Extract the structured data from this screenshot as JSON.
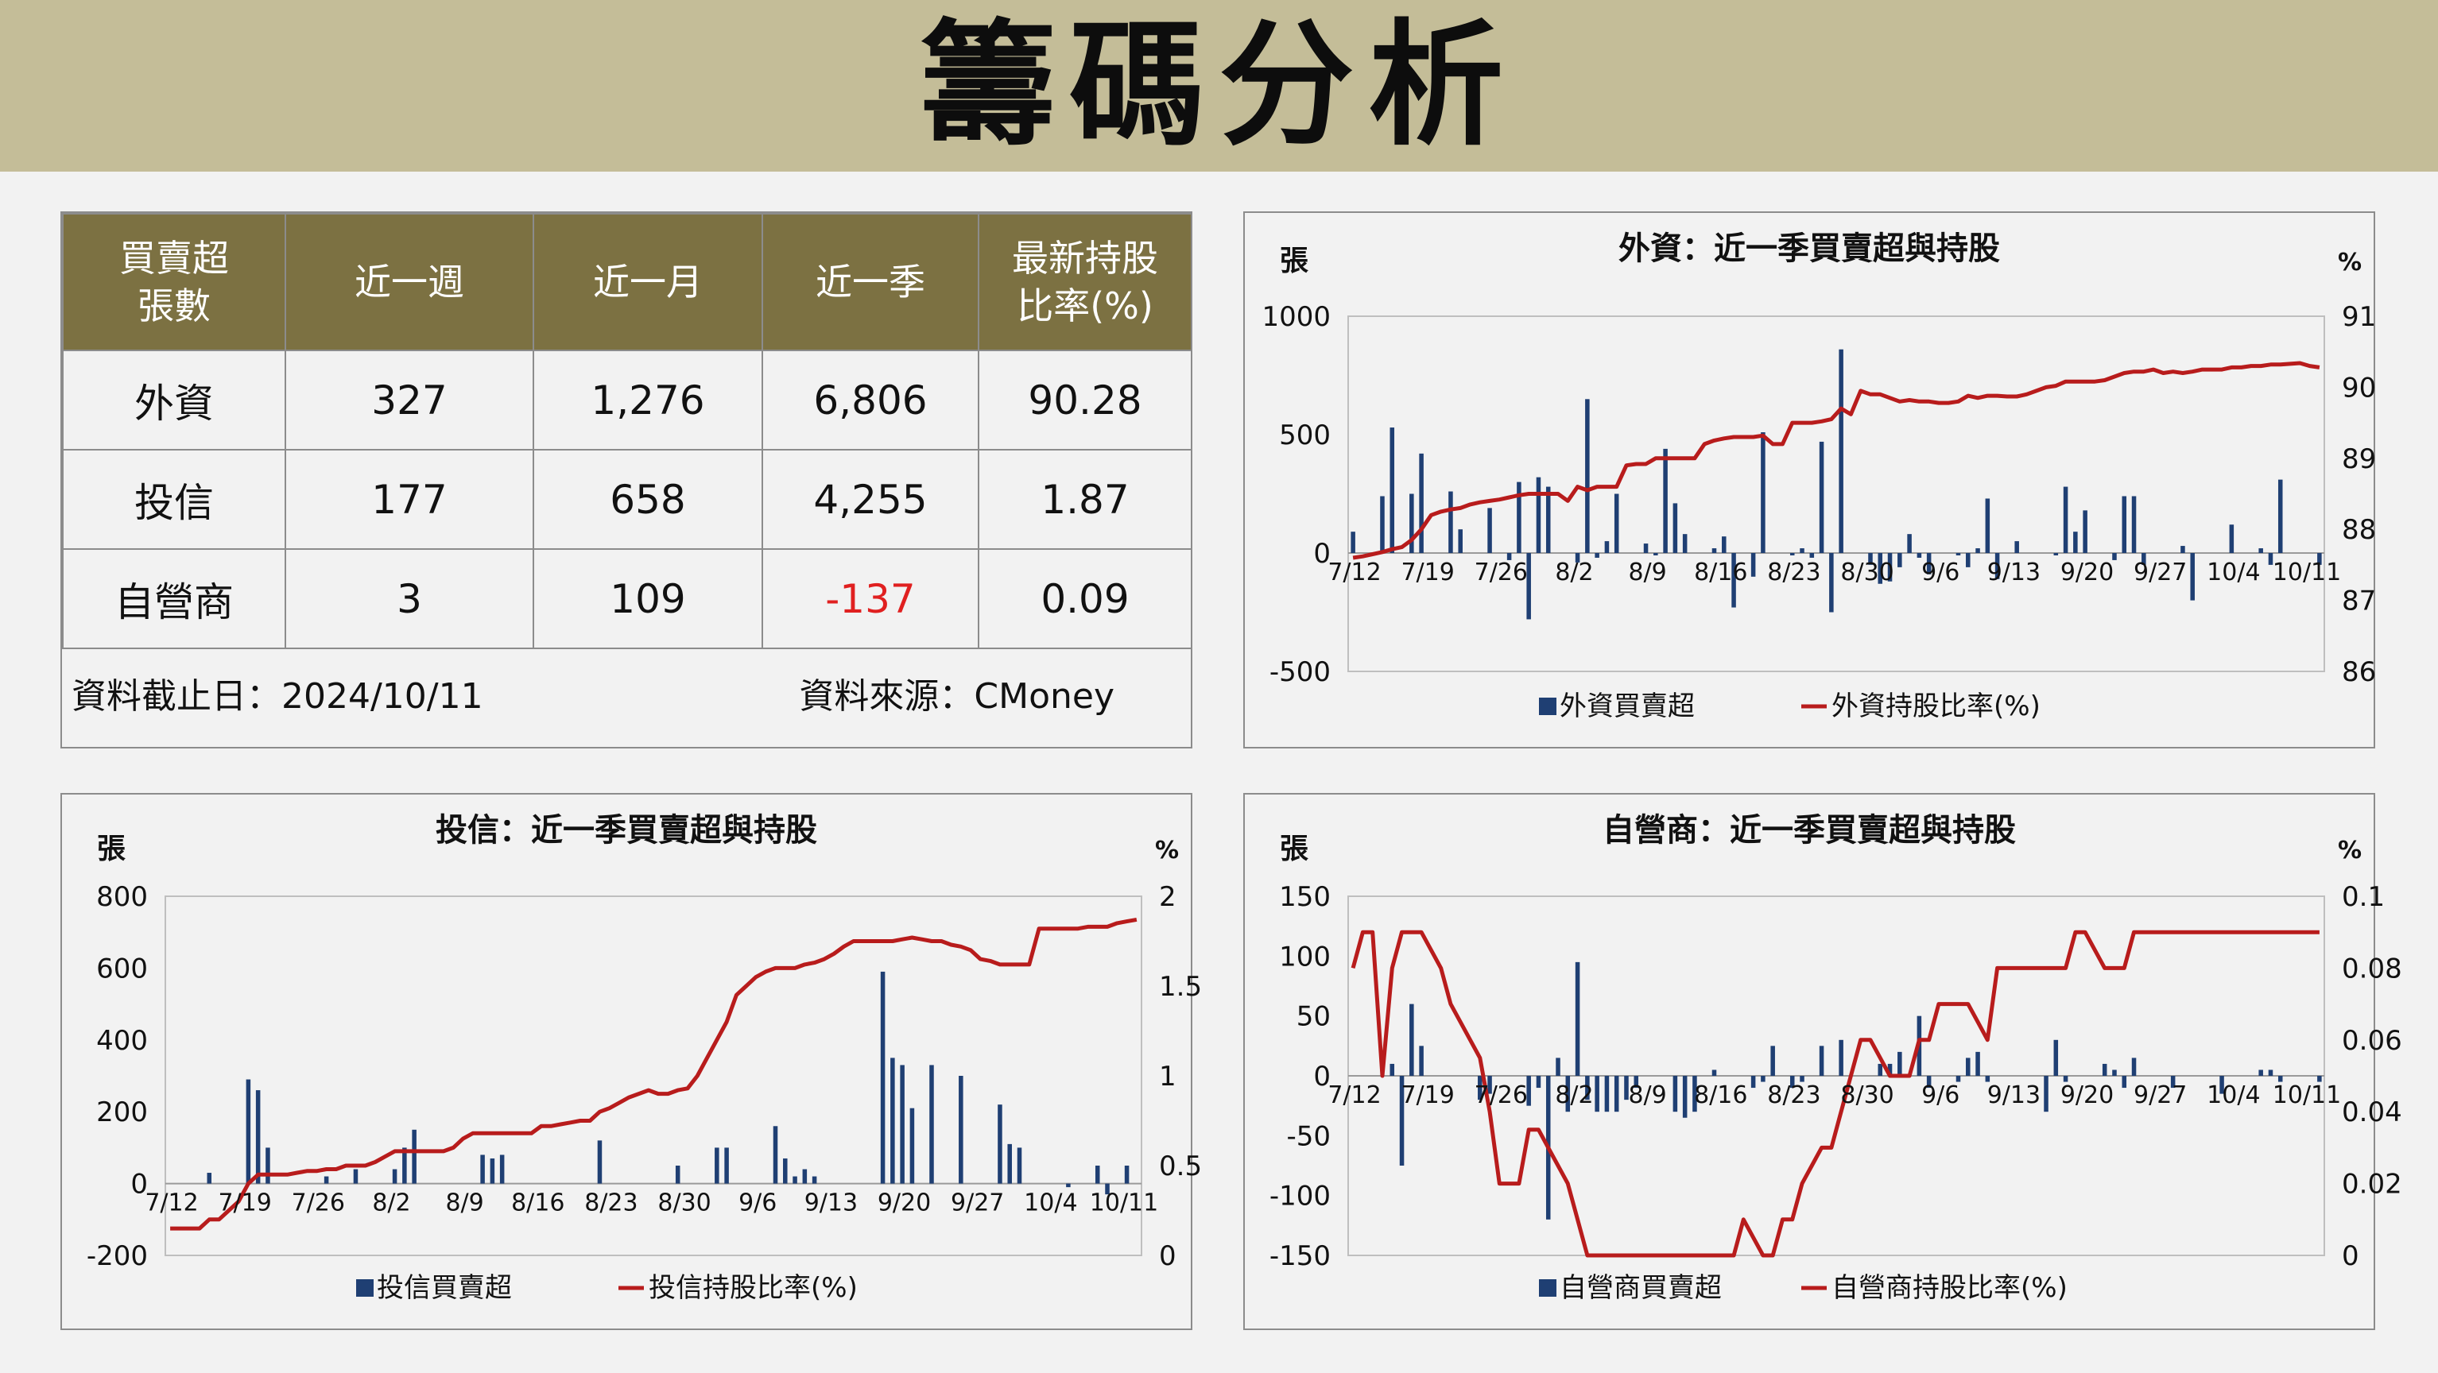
{
  "page": {
    "title": "籌碼分析"
  },
  "summary_table": {
    "headers": [
      "買賣超\n張數",
      "近一週",
      "近一月",
      "近一季",
      "最新持股\n比率(%)"
    ],
    "rows": [
      {
        "cells": [
          "外資",
          "327",
          "1,276",
          "6,806",
          "90.28"
        ]
      },
      {
        "cells": [
          "投信",
          "177",
          "658",
          "4,255",
          "1.87"
        ]
      },
      {
        "cells": [
          "自營商",
          "3",
          "109",
          "-137",
          "0.09"
        ]
      }
    ],
    "footer": {
      "date": "資料截止日：2024/10/11",
      "source": "資料來源：CMoney"
    },
    "negative_color": "#e02020"
  },
  "colors": {
    "banner": "#c4bd98",
    "header": "#7c7142",
    "bar": "#1f3f73",
    "line": "#b81c1c"
  },
  "chart_data": [
    {
      "id": "foreign",
      "type": "bar+line",
      "title": "外資：近一季買賣超與持股",
      "ylabel_left": "張",
      "ylabel_right": "%",
      "ylim_left": [
        -500,
        1000
      ],
      "yticks_left": [
        "-500",
        "0",
        "500",
        "1000"
      ],
      "ylim_right": [
        86,
        91
      ],
      "yticks_right": [
        "86",
        "87",
        "88",
        "89",
        "90",
        "91"
      ],
      "tick_labels": [
        "7/12",
        "7/19",
        "7/26",
        "8/2",
        "8/9",
        "8/16",
        "8/23",
        "8/30",
        "9/6",
        "9/13",
        "9/20",
        "9/27",
        "10/4",
        "10/11"
      ],
      "series": [
        {
          "name": "外資買賣超",
          "kind": "bar",
          "color": "#1f3f73",
          "values": [
            90,
            0,
            0,
            240,
            530,
            0,
            250,
            420,
            0,
            0,
            260,
            100,
            0,
            0,
            190,
            0,
            -30,
            300,
            -280,
            320,
            280,
            0,
            0,
            -40,
            650,
            -20,
            50,
            250,
            0,
            0,
            40,
            -10,
            440,
            210,
            80,
            0,
            0,
            20,
            70,
            -230,
            0,
            -100,
            510,
            0,
            0,
            -10,
            20,
            -20,
            470,
            -250,
            860,
            0,
            0,
            -50,
            -130,
            -120,
            -60,
            80,
            -20,
            -90,
            0,
            0,
            -10,
            -60,
            20,
            230,
            -110,
            0,
            50,
            0,
            0,
            0,
            -10,
            280,
            90,
            180,
            0,
            0,
            -30,
            240,
            240,
            -50,
            0,
            0,
            0,
            30,
            -200,
            0,
            0,
            0,
            120,
            0,
            0,
            20,
            -50,
            310,
            0,
            0,
            0,
            -50
          ]
        },
        {
          "name": "外資持股比率(%)",
          "kind": "line",
          "color": "#b81c1c",
          "values": [
            87.6,
            87.62,
            87.65,
            87.68,
            87.72,
            87.75,
            87.85,
            88.0,
            88.2,
            88.25,
            88.28,
            88.3,
            88.35,
            88.38,
            88.4,
            88.42,
            88.45,
            88.48,
            88.5,
            88.5,
            88.5,
            88.5,
            88.4,
            88.6,
            88.55,
            88.6,
            88.6,
            88.6,
            88.9,
            88.92,
            88.92,
            89.0,
            89.0,
            89.0,
            89.0,
            89.0,
            89.2,
            89.25,
            89.28,
            89.3,
            89.3,
            89.3,
            89.32,
            89.2,
            89.2,
            89.5,
            89.5,
            89.5,
            89.52,
            89.55,
            89.7,
            89.62,
            89.95,
            89.9,
            89.9,
            89.85,
            89.8,
            89.82,
            89.8,
            89.8,
            89.78,
            89.78,
            89.8,
            89.88,
            89.85,
            89.88,
            89.88,
            89.87,
            89.87,
            89.9,
            89.95,
            90.0,
            90.02,
            90.08,
            90.08,
            90.08,
            90.08,
            90.1,
            90.15,
            90.2,
            90.22,
            90.22,
            90.25,
            90.2,
            90.22,
            90.2,
            90.22,
            90.25,
            90.25,
            90.25,
            90.28,
            90.28,
            90.3,
            90.3,
            90.32,
            90.32,
            90.33,
            90.34,
            90.3,
            90.28
          ]
        }
      ]
    },
    {
      "id": "trust",
      "type": "bar+line",
      "title": "投信：近一季買賣超與持股",
      "ylabel_left": "張",
      "ylabel_right": "%",
      "ylim_left": [
        -200,
        800
      ],
      "yticks_left": [
        "-200",
        "0",
        "200",
        "400",
        "600",
        "800"
      ],
      "ylim_right": [
        0,
        2
      ],
      "yticks_right": [
        "0",
        "0.5",
        "1",
        "1.5",
        "2"
      ],
      "tick_labels": [
        "7/12",
        "7/19",
        "7/26",
        "8/2",
        "8/9",
        "8/16",
        "8/23",
        "8/30",
        "9/6",
        "9/13",
        "9/20",
        "9/27",
        "10/4",
        "10/11"
      ],
      "series": [
        {
          "name": "投信買賣超",
          "kind": "bar",
          "color": "#1f3f73",
          "values": [
            0,
            0,
            0,
            0,
            30,
            0,
            0,
            0,
            290,
            260,
            100,
            0,
            0,
            0,
            0,
            0,
            20,
            0,
            0,
            40,
            0,
            0,
            0,
            40,
            100,
            150,
            0,
            0,
            0,
            0,
            0,
            0,
            80,
            70,
            80,
            0,
            0,
            0,
            0,
            0,
            0,
            0,
            0,
            0,
            120,
            0,
            0,
            0,
            0,
            0,
            0,
            0,
            50,
            0,
            0,
            0,
            100,
            100,
            0,
            0,
            0,
            0,
            160,
            70,
            20,
            40,
            20,
            0,
            0,
            0,
            0,
            0,
            0,
            590,
            350,
            330,
            210,
            0,
            330,
            0,
            0,
            300,
            0,
            0,
            0,
            220,
            110,
            100,
            0,
            0,
            0,
            0,
            -10,
            0,
            0,
            50,
            -30,
            0,
            50,
            0
          ]
        },
        {
          "name": "投信持股比率(%)",
          "kind": "line",
          "color": "#b81c1c",
          "values": [
            0.15,
            0.15,
            0.15,
            0.15,
            0.2,
            0.2,
            0.25,
            0.3,
            0.4,
            0.45,
            0.45,
            0.45,
            0.45,
            0.46,
            0.47,
            0.47,
            0.48,
            0.48,
            0.5,
            0.5,
            0.5,
            0.52,
            0.55,
            0.58,
            0.58,
            0.58,
            0.58,
            0.58,
            0.58,
            0.6,
            0.65,
            0.68,
            0.68,
            0.68,
            0.68,
            0.68,
            0.68,
            0.68,
            0.72,
            0.72,
            0.73,
            0.74,
            0.75,
            0.75,
            0.8,
            0.82,
            0.85,
            0.88,
            0.9,
            0.92,
            0.9,
            0.9,
            0.92,
            0.93,
            1.0,
            1.1,
            1.2,
            1.3,
            1.45,
            1.5,
            1.55,
            1.58,
            1.6,
            1.6,
            1.6,
            1.62,
            1.63,
            1.65,
            1.68,
            1.72,
            1.75,
            1.75,
            1.75,
            1.75,
            1.75,
            1.76,
            1.77,
            1.76,
            1.75,
            1.75,
            1.73,
            1.72,
            1.7,
            1.65,
            1.64,
            1.62,
            1.62,
            1.62,
            1.62,
            1.82,
            1.82,
            1.82,
            1.82,
            1.82,
            1.83,
            1.83,
            1.83,
            1.85,
            1.86,
            1.87
          ]
        }
      ]
    },
    {
      "id": "dealer",
      "type": "bar+line",
      "title": "自營商：近一季買賣超與持股",
      "ylabel_left": "張",
      "ylabel_right": "%",
      "ylim_left": [
        -150,
        150
      ],
      "yticks_left": [
        "-150",
        "-100",
        "-50",
        "0",
        "50",
        "100",
        "150"
      ],
      "ylim_right": [
        0,
        0.1
      ],
      "yticks_right": [
        "0",
        "0.02",
        "0.04",
        "0.06",
        "0.08",
        "0.1"
      ],
      "tick_labels": [
        "7/12",
        "7/19",
        "7/26",
        "8/2",
        "8/9",
        "8/16",
        "8/23",
        "8/30",
        "9/6",
        "9/13",
        "9/20",
        "9/27",
        "10/4",
        "10/11"
      ],
      "series": [
        {
          "name": "自營商買賣超",
          "kind": "bar",
          "color": "#1f3f73",
          "values": [
            0,
            0,
            0,
            0,
            10,
            -75,
            60,
            25,
            0,
            0,
            0,
            0,
            0,
            -20,
            -15,
            0,
            0,
            0,
            -25,
            -10,
            -120,
            15,
            -30,
            95,
            -20,
            -30,
            -30,
            -30,
            -20,
            -10,
            0,
            0,
            0,
            -30,
            -35,
            -30,
            0,
            5,
            0,
            0,
            0,
            -10,
            -5,
            25,
            0,
            -10,
            -5,
            0,
            25,
            0,
            30,
            0,
            0,
            0,
            10,
            10,
            20,
            0,
            50,
            -10,
            0,
            0,
            -5,
            15,
            20,
            -5,
            0,
            0,
            0,
            0,
            0,
            -30,
            30,
            -5,
            0,
            0,
            0,
            10,
            5,
            -10,
            15,
            0,
            0,
            0,
            -10,
            0,
            0,
            0,
            0,
            -15,
            0,
            0,
            0,
            5,
            5,
            -5,
            0,
            0,
            0,
            -5
          ]
        },
        {
          "name": "自營商持股比率(%)",
          "kind": "line",
          "color": "#b81c1c",
          "values": [
            0.08,
            0.09,
            0.09,
            0.05,
            0.08,
            0.09,
            0.09,
            0.09,
            0.085,
            0.08,
            0.07,
            0.065,
            0.06,
            0.055,
            0.04,
            0.02,
            0.02,
            0.02,
            0.035,
            0.035,
            0.03,
            0.025,
            0.02,
            0.01,
            0,
            0,
            0,
            0,
            0,
            0,
            0,
            0,
            0,
            0,
            0,
            0,
            0,
            0,
            0,
            0,
            0.01,
            0.005,
            0,
            0,
            0.01,
            0.01,
            0.02,
            0.025,
            0.03,
            0.03,
            0.04,
            0.05,
            0.06,
            0.06,
            0.055,
            0.05,
            0.05,
            0.05,
            0.06,
            0.06,
            0.07,
            0.07,
            0.07,
            0.07,
            0.065,
            0.06,
            0.08,
            0.08,
            0.08,
            0.08,
            0.08,
            0.08,
            0.08,
            0.08,
            0.09,
            0.09,
            0.085,
            0.08,
            0.08,
            0.08,
            0.09,
            0.09,
            0.09,
            0.09,
            0.09,
            0.09,
            0.09,
            0.09,
            0.09,
            0.09,
            0.09,
            0.09,
            0.09,
            0.09,
            0.09,
            0.09,
            0.09,
            0.09,
            0.09,
            0.09
          ]
        }
      ]
    }
  ]
}
